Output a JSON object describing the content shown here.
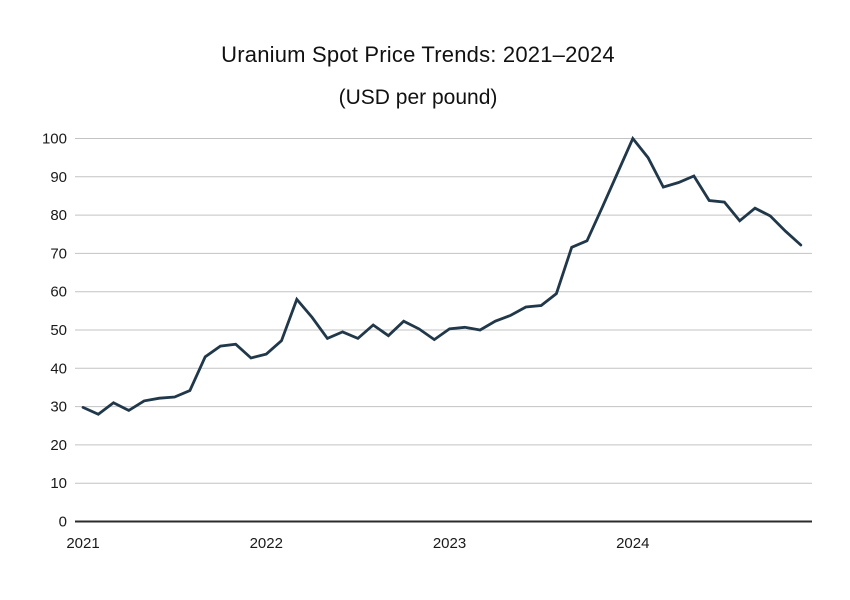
{
  "chart_data": {
    "type": "line",
    "title": "Uranium Spot Price Trends: 2021–2024",
    "subtitle": "(USD per pound)",
    "series_name": "Uranium spot price (USD per pound)",
    "x": [
      "2021-01",
      "2021-02",
      "2021-03",
      "2021-04",
      "2021-05",
      "2021-06",
      "2021-07",
      "2021-08",
      "2021-09",
      "2021-10",
      "2021-11",
      "2021-12",
      "2022-01",
      "2022-02",
      "2022-03",
      "2022-04",
      "2022-05",
      "2022-06",
      "2022-07",
      "2022-08",
      "2022-09",
      "2022-10",
      "2022-11",
      "2022-12",
      "2023-01",
      "2023-02",
      "2023-03",
      "2023-04",
      "2023-05",
      "2023-06",
      "2023-07",
      "2023-08",
      "2023-09",
      "2023-10",
      "2023-11",
      "2023-12",
      "2024-01",
      "2024-02",
      "2024-03",
      "2024-04",
      "2024-05",
      "2024-06",
      "2024-07",
      "2024-08",
      "2024-09",
      "2024-10",
      "2024-11",
      "2024-12"
    ],
    "values": [
      29.8,
      28,
      31,
      29,
      31.5,
      32.2,
      32.5,
      34.2,
      43,
      45.8,
      46.3,
      42.7,
      43.7,
      47.2,
      58,
      53.3,
      47.8,
      49.5,
      47.8,
      51.3,
      48.5,
      52.3,
      50.3,
      47.5,
      50.3,
      50.7,
      50,
      52.3,
      53.8,
      56,
      56.4,
      59.5,
      71.6,
      73.3,
      82,
      91,
      100,
      95,
      87.3,
      88.5,
      90.2,
      83.8,
      83.4,
      78.5,
      81.8,
      79.8,
      75.8,
      72.2
    ],
    "xlabel": "",
    "ylabel": "",
    "ylim": [
      0,
      100
    ],
    "yticks": [
      0,
      10,
      20,
      30,
      40,
      50,
      60,
      70,
      80,
      90,
      100
    ],
    "xtick_labels": [
      "2021",
      "2022",
      "2023",
      "2024"
    ],
    "xtick_month_index": [
      0,
      12,
      24,
      36
    ],
    "grid": "horizontal",
    "legend": "none",
    "line_color": "#20384a",
    "grid_color": "#c3c3c3",
    "axis_color": "#2b2b2b",
    "text_color": "#1a1a1a"
  }
}
